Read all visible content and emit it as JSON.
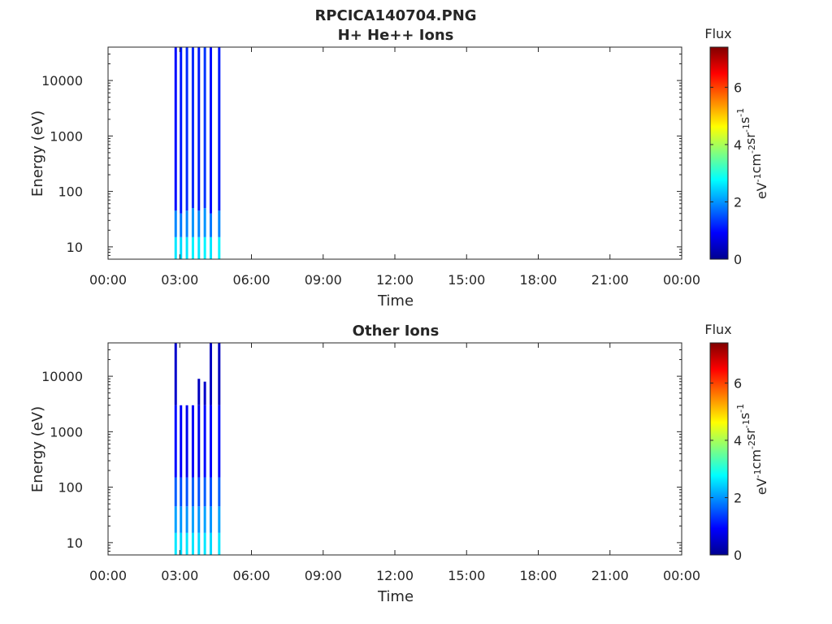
{
  "figure": {
    "title": "RPCICA140704.PNG"
  },
  "colors": {
    "axis": "#262626",
    "colormap": [
      "#00008f",
      "#0000ff",
      "#0080ff",
      "#00ffff",
      "#80ff80",
      "#ffff00",
      "#ff8000",
      "#ff0000",
      "#800000"
    ]
  },
  "chart_data": [
    {
      "type": "heatmap",
      "title": "H+ He++ Ions",
      "xlabel": "Time",
      "ylabel": "Energy (eV)",
      "x_ticks": [
        "00:00",
        "03:00",
        "06:00",
        "09:00",
        "12:00",
        "15:00",
        "18:00",
        "21:00",
        "00:00"
      ],
      "xlim_hours": [
        0,
        24
      ],
      "y_scale": "log",
      "y_ticks": [
        "10",
        "100",
        "1000",
        "10000"
      ],
      "ylim": [
        6,
        40000
      ],
      "colorbar": {
        "title": "Flux",
        "units": "eV-1cm-2sr-1s-1",
        "ticks": [
          "0",
          "2",
          "4",
          "6"
        ],
        "range": [
          0,
          7.4
        ]
      },
      "bursts": [
        {
          "t": 2.83,
          "levels": [
            [
              6,
              15,
              2.6
            ],
            [
              15,
              45,
              1.9
            ],
            [
              45,
              40000,
              1.0
            ]
          ]
        },
        {
          "t": 3.05,
          "levels": [
            [
              6,
              15,
              2.5
            ],
            [
              15,
              40,
              1.8
            ],
            [
              40,
              40000,
              1.1
            ]
          ]
        },
        {
          "t": 3.3,
          "levels": [
            [
              6,
              15,
              2.6
            ],
            [
              15,
              45,
              1.9
            ],
            [
              45,
              40000,
              1.2
            ]
          ]
        },
        {
          "t": 3.55,
          "levels": [
            [
              6,
              15,
              2.7
            ],
            [
              15,
              50,
              2.0
            ],
            [
              50,
              40000,
              1.2
            ]
          ]
        },
        {
          "t": 3.8,
          "levels": [
            [
              6,
              15,
              2.6
            ],
            [
              15,
              45,
              1.9
            ],
            [
              45,
              40000,
              1.1
            ]
          ]
        },
        {
          "t": 4.05,
          "levels": [
            [
              6,
              15,
              2.7
            ],
            [
              15,
              50,
              2.0
            ],
            [
              50,
              40000,
              1.3
            ]
          ]
        },
        {
          "t": 4.3,
          "levels": [
            [
              6,
              15,
              2.6
            ],
            [
              15,
              40,
              1.8
            ],
            [
              40,
              40000,
              1.0
            ]
          ]
        },
        {
          "t": 4.65,
          "levels": [
            [
              6,
              15,
              2.7
            ],
            [
              15,
              45,
              1.9
            ],
            [
              45,
              40000,
              1.1
            ]
          ]
        }
      ]
    },
    {
      "type": "heatmap",
      "title": "Other Ions",
      "xlabel": "Time",
      "ylabel": "Energy (eV)",
      "x_ticks": [
        "00:00",
        "03:00",
        "06:00",
        "09:00",
        "12:00",
        "15:00",
        "18:00",
        "21:00",
        "00:00"
      ],
      "xlim_hours": [
        0,
        24
      ],
      "y_scale": "log",
      "y_ticks": [
        "10",
        "100",
        "1000",
        "10000"
      ],
      "ylim": [
        6,
        40000
      ],
      "colorbar": {
        "title": "Flux",
        "units": "eV-1cm-2sr-1s-1",
        "ticks": [
          "0",
          "2",
          "4",
          "6"
        ],
        "range": [
          0,
          7.4
        ]
      },
      "bursts": [
        {
          "t": 2.83,
          "levels": [
            [
              6,
              15,
              2.6
            ],
            [
              15,
              45,
              2.1
            ],
            [
              45,
              150,
              1.6
            ],
            [
              150,
              3000,
              1.0
            ],
            [
              3000,
              40000,
              0.5
            ]
          ]
        },
        {
          "t": 3.05,
          "levels": [
            [
              6,
              15,
              2.5
            ],
            [
              15,
              45,
              2.0
            ],
            [
              45,
              150,
              1.5
            ],
            [
              150,
              3000,
              0.9
            ]
          ]
        },
        {
          "t": 3.3,
          "levels": [
            [
              6,
              15,
              2.6
            ],
            [
              15,
              45,
              2.0
            ],
            [
              45,
              150,
              1.5
            ],
            [
              150,
              3000,
              0.8
            ]
          ]
        },
        {
          "t": 3.55,
          "levels": [
            [
              6,
              15,
              2.6
            ],
            [
              15,
              45,
              2.1
            ],
            [
              45,
              150,
              1.6
            ],
            [
              150,
              3000,
              0.9
            ]
          ]
        },
        {
          "t": 3.8,
          "levels": [
            [
              6,
              15,
              2.5
            ],
            [
              15,
              45,
              2.0
            ],
            [
              45,
              150,
              1.5
            ],
            [
              150,
              3000,
              0.8
            ],
            [
              3000,
              9000,
              0.4
            ]
          ]
        },
        {
          "t": 4.05,
          "levels": [
            [
              6,
              15,
              2.6
            ],
            [
              15,
              45,
              2.1
            ],
            [
              45,
              150,
              1.6
            ],
            [
              150,
              3000,
              1.0
            ],
            [
              3000,
              8000,
              0.5
            ]
          ]
        },
        {
          "t": 4.3,
          "levels": [
            [
              6,
              15,
              2.5
            ],
            [
              15,
              45,
              2.0
            ],
            [
              45,
              150,
              1.5
            ],
            [
              150,
              3000,
              0.9
            ],
            [
              3000,
              40000,
              0.4
            ]
          ]
        },
        {
          "t": 4.65,
          "levels": [
            [
              6,
              15,
              2.6
            ],
            [
              15,
              45,
              2.1
            ],
            [
              45,
              150,
              1.6
            ],
            [
              150,
              3000,
              1.0
            ],
            [
              3000,
              40000,
              0.4
            ]
          ]
        }
      ]
    }
  ]
}
